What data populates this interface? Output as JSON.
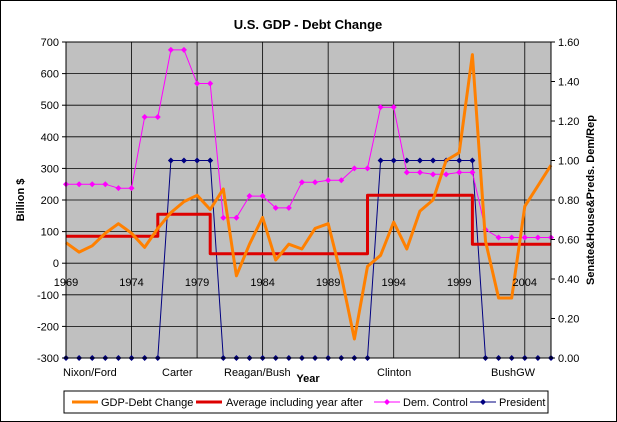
{
  "chart_data": {
    "type": "line",
    "title": "U.S. GDP - Debt Change",
    "xlabel": "Year",
    "ylabel_left": "Billion $",
    "ylabel_right": "Senate&House&Preds. Dem/Rep",
    "y_left_range": [
      -300,
      700
    ],
    "y_left_ticks": [
      "700",
      "600",
      "500",
      "400",
      "300",
      "200",
      "100",
      "0",
      "-100",
      "-200",
      "-300"
    ],
    "y_right_range": [
      0,
      1.6
    ],
    "y_right_ticks": [
      "1.60",
      "1.40",
      "1.20",
      "1.00",
      "0.80",
      "0.60",
      "0.40",
      "0.20",
      "0.00"
    ],
    "x_range": [
      1969,
      2006
    ],
    "x_ticks": [
      "1969",
      "1974",
      "1979",
      "1984",
      "1989",
      "1994",
      "1999",
      "2004"
    ],
    "president_labels": [
      "Nixon/Ford",
      "Carter",
      "Reagan/Bush",
      "Clinton",
      "BushGW"
    ],
    "grid": true,
    "legend_position": "bottom",
    "series": [
      {
        "name": "GDP-Debt Change",
        "axis": "left",
        "color": "#ff8000",
        "x": [
          1969,
          1970,
          1971,
          1972,
          1973,
          1974,
          1975,
          1976,
          1977,
          1978,
          1979,
          1980,
          1981,
          1982,
          1983,
          1984,
          1985,
          1986,
          1987,
          1988,
          1989,
          1990,
          1991,
          1992,
          1993,
          1994,
          1995,
          1996,
          1997,
          1998,
          1999,
          2000,
          2001,
          2002,
          2003,
          2004,
          2005,
          2006
        ],
        "values": [
          65,
          35,
          55,
          95,
          125,
          95,
          50,
          110,
          160,
          195,
          215,
          170,
          235,
          -40,
          60,
          145,
          10,
          60,
          45,
          110,
          125,
          -40,
          -240,
          -10,
          25,
          130,
          45,
          165,
          200,
          325,
          350,
          660,
          70,
          -110,
          -110,
          180,
          245,
          310
        ]
      },
      {
        "name": "Average including year after",
        "axis": "left",
        "color": "#dd0000",
        "x": [
          1969,
          1976,
          1976,
          1980,
          1980,
          1992,
          1992,
          2000,
          2000,
          2006
        ],
        "values": [
          85,
          85,
          155,
          155,
          30,
          30,
          215,
          215,
          60,
          60
        ]
      },
      {
        "name": "Dem. Control",
        "axis": "right",
        "color": "#ff00ff",
        "x": [
          1969,
          1970,
          1971,
          1972,
          1973,
          1974,
          1975,
          1976,
          1977,
          1978,
          1979,
          1980,
          1981,
          1982,
          1983,
          1984,
          1985,
          1986,
          1987,
          1988,
          1989,
          1990,
          1991,
          1992,
          1993,
          1994,
          1995,
          1996,
          1997,
          1998,
          1999,
          2000,
          2001,
          2002,
          2003,
          2004,
          2005,
          2006
        ],
        "values": [
          0.88,
          0.88,
          0.88,
          0.88,
          0.86,
          0.86,
          1.22,
          1.22,
          1.56,
          1.56,
          1.39,
          1.39,
          0.71,
          0.71,
          0.82,
          0.82,
          0.76,
          0.76,
          0.89,
          0.89,
          0.9,
          0.9,
          0.96,
          0.96,
          1.27,
          1.27,
          0.94,
          0.94,
          0.93,
          0.93,
          0.94,
          0.94,
          0.65,
          0.61,
          0.61,
          0.61,
          0.61,
          0.61
        ]
      },
      {
        "name": "President",
        "axis": "right",
        "color": "#000080",
        "x": [
          1969,
          1970,
          1971,
          1972,
          1973,
          1974,
          1975,
          1976,
          1977,
          1978,
          1979,
          1980,
          1981,
          1982,
          1983,
          1984,
          1985,
          1986,
          1987,
          1988,
          1989,
          1990,
          1991,
          1992,
          1993,
          1994,
          1995,
          1996,
          1997,
          1998,
          1999,
          2000,
          2001,
          2002,
          2003,
          2004,
          2005,
          2006
        ],
        "values": [
          0,
          0,
          0,
          0,
          0,
          0,
          0,
          0,
          1,
          1,
          1,
          1,
          0,
          0,
          0,
          0,
          0,
          0,
          0,
          0,
          0,
          0,
          0,
          0,
          1,
          1,
          1,
          1,
          1,
          1,
          1,
          1,
          0,
          0,
          0,
          0,
          0,
          0
        ]
      }
    ]
  },
  "colors": {
    "plot_background": "#c0c0c0",
    "chart_background": "#ffffff",
    "border": "#000000"
  }
}
